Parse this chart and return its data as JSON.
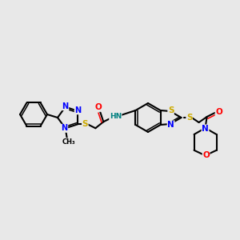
{
  "background_color": "#e8e8e8",
  "atom_colors": {
    "C": "#000000",
    "N": "#0000ff",
    "S": "#ccaa00",
    "O": "#ff0000",
    "H": "#008080"
  },
  "line_color": "#000000",
  "line_width": 1.5
}
